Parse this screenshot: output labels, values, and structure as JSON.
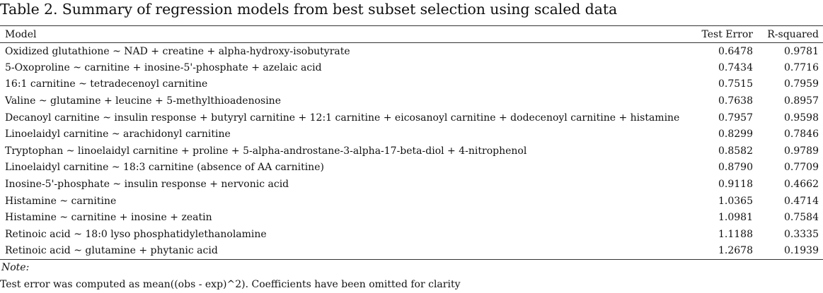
{
  "caption": "Table 2. Summary of regression models from best subset selection using scaled data",
  "table": {
    "headers": {
      "model": "Model",
      "test_error": "Test Error",
      "r_squared": "R-squared"
    },
    "rows": [
      {
        "model": "Oxidized glutathione ~ NAD + creatine + alpha-hydroxy-isobutyrate",
        "test_error": "0.6478",
        "r_squared": "0.9781"
      },
      {
        "model": "5-Oxoproline ~ carnitine + inosine-5'-phosphate + azelaic acid",
        "test_error": "0.7434",
        "r_squared": "0.7716"
      },
      {
        "model": "16:1 carnitine ~ tetradecenoyl carnitine",
        "test_error": "0.7515",
        "r_squared": "0.7959"
      },
      {
        "model": "Valine ~ glutamine + leucine + 5-methylthioadenosine",
        "test_error": "0.7638",
        "r_squared": "0.8957"
      },
      {
        "model": "Decanoyl carnitine ~ insulin response + butyryl carnitine + 12:1 carnitine + eicosanoyl carnitine + dodecenoyl carnitine + histamine",
        "test_error": "0.7957",
        "r_squared": "0.9598"
      },
      {
        "model": "Linoelaidyl carnitine ~ arachidonyl carnitine",
        "test_error": "0.8299",
        "r_squared": "0.7846"
      },
      {
        "model": "Tryptophan ~ linoelaidyl carnitine + proline + 5-alpha-androstane-3-alpha-17-beta-diol + 4-nitrophenol",
        "test_error": "0.8582",
        "r_squared": "0.9789"
      },
      {
        "model": "Linoelaidyl carnitine ~ 18:3 carnitine (absence of AA carnitine)",
        "test_error": "0.8790",
        "r_squared": "0.7709"
      },
      {
        "model": "Inosine-5'-phosphate ~ insulin response + nervonic acid",
        "test_error": "0.9118",
        "r_squared": "0.4662"
      },
      {
        "model": "Histamine ~ carnitine",
        "test_error": "1.0365",
        "r_squared": "0.4714"
      },
      {
        "model": "Histamine ~ carnitine + inosine + zeatin",
        "test_error": "1.0981",
        "r_squared": "0.7584"
      },
      {
        "model": "Retinoic acid ~ 18:0 lyso phosphatidylethanolamine",
        "test_error": "1.1188",
        "r_squared": "0.3335"
      },
      {
        "model": "Retinoic acid ~ glutamine + phytanic acid",
        "test_error": "1.2678",
        "r_squared": "0.1939"
      }
    ]
  },
  "note": {
    "label": "Note:",
    "text": "Test error was computed as mean((obs - exp)^2). Coefficients have been omitted for clarity"
  }
}
